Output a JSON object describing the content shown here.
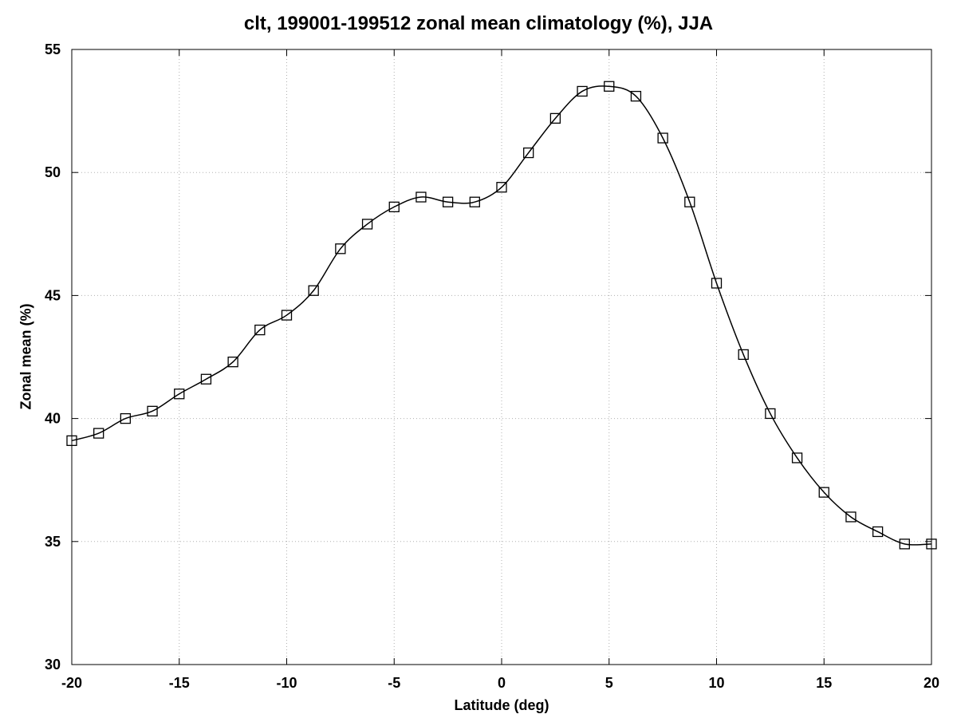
{
  "chart_data": {
    "type": "line",
    "title": "clt, 199001-199512 zonal mean climatology (%), JJA",
    "xlabel": "Latitude (deg)",
    "ylabel": "Zonal mean (%)",
    "xlim": [
      -20,
      20
    ],
    "ylim": [
      30,
      55
    ],
    "xticks": [
      -20,
      -15,
      -10,
      -5,
      0,
      5,
      10,
      15,
      20
    ],
    "yticks": [
      30,
      35,
      40,
      45,
      50,
      55
    ],
    "grid": true,
    "marker": "open-square",
    "line_color": "#000000",
    "series": [
      {
        "x": [
          -20.0,
          -18.75,
          -17.5,
          -16.25,
          -15.0,
          -13.75,
          -12.5,
          -11.25,
          -10.0,
          -8.75,
          -7.5,
          -6.25,
          -5.0,
          -3.75,
          -2.5,
          -1.25,
          0.0,
          1.25,
          2.5,
          3.75,
          5.0,
          6.25,
          7.5,
          8.75,
          10.0,
          11.25,
          12.5,
          13.75,
          15.0,
          16.25,
          17.5,
          18.75,
          20.0
        ],
        "y": [
          39.1,
          39.4,
          40.0,
          40.3,
          41.0,
          41.6,
          42.3,
          43.6,
          44.2,
          45.2,
          46.9,
          47.9,
          48.6,
          49.0,
          48.8,
          48.8,
          49.4,
          50.8,
          52.2,
          53.3,
          53.5,
          53.1,
          51.4,
          48.8,
          45.5,
          42.6,
          40.2,
          38.4,
          37.0,
          36.0,
          35.4,
          34.9,
          34.9
        ]
      }
    ]
  }
}
